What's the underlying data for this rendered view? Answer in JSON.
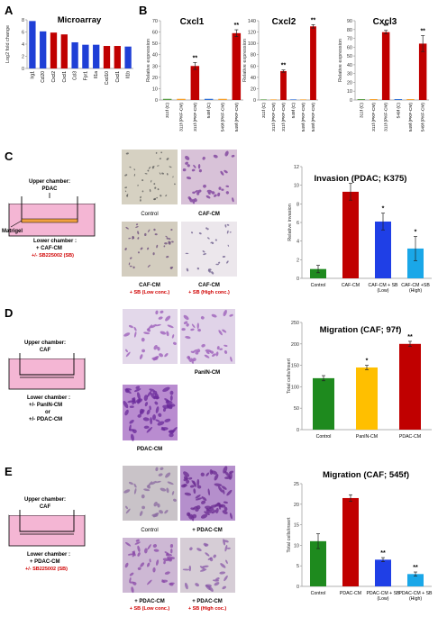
{
  "panels": {
    "a": "A",
    "b": "B",
    "c": "C",
    "d": "D",
    "e": "E"
  },
  "chart_data": [
    {
      "id": "microarray",
      "type": "bar",
      "title": "Microarray",
      "ylabel": "Log2 fold change",
      "ylim": [
        0,
        8
      ],
      "yticks": [
        0,
        2,
        4,
        6,
        8
      ],
      "categories": [
        "Irg1",
        "Ccl20",
        "Cxcl2",
        "Cxcl1",
        "Ccl3",
        "Fpr1",
        "Il1a",
        "Cxcl10",
        "Cxcl1",
        "Il1b"
      ],
      "values": [
        7.8,
        6.1,
        5.9,
        5.6,
        4.3,
        3.9,
        3.9,
        3.7,
        3.7,
        3.6
      ],
      "colors": [
        "#1f3fd6",
        "#1f3fd6",
        "#c00000",
        "#c00000",
        "#1f3fd6",
        "#1f3fd6",
        "#1f3fd6",
        "#c00000",
        "#c00000",
        "#1f3fd6"
      ]
    },
    {
      "id": "cxcl1",
      "type": "bar",
      "title": "Cxcl1",
      "ylabel": "Relative expression",
      "ylim": [
        0,
        70
      ],
      "yticks": [
        0,
        10,
        20,
        30,
        40,
        50,
        60,
        70
      ],
      "categories": [
        "311f (C)",
        "311f (PKF-CM)",
        "311f (PKF-CM)",
        "549f (C)",
        "549f (PKF-CM)",
        "549f (PKF-CM)"
      ],
      "values": [
        1,
        1,
        30,
        1,
        1,
        59
      ],
      "errors": [
        0,
        0,
        3,
        0,
        0,
        3
      ],
      "signif": [
        "",
        "",
        "**",
        "",
        "",
        "**"
      ],
      "colors": [
        "#5a9e47",
        "#f6a02b",
        "#c00000",
        "#2e6fd6",
        "#f6a02b",
        "#c00000"
      ]
    },
    {
      "id": "cxcl2",
      "type": "bar",
      "title": "Cxcl2",
      "ylabel": "Relative expression",
      "ylim": [
        0,
        140
      ],
      "yticks": [
        0,
        20,
        40,
        60,
        80,
        100,
        120,
        140
      ],
      "categories": [
        "311f (C)",
        "311f (PKF-CM)",
        "311f (PKF-CM)",
        "549f (C)",
        "549f (PKF-CM)",
        "549f (PKF-CM)"
      ],
      "values": [
        1,
        1,
        51,
        1,
        1,
        130
      ],
      "errors": [
        0,
        0,
        2,
        0,
        0,
        3
      ],
      "signif": [
        "",
        "",
        "**",
        "",
        "",
        "**"
      ],
      "colors": [
        "#5a9e47",
        "#f6a02b",
        "#c00000",
        "#2e6fd6",
        "#f6a02b",
        "#c00000"
      ]
    },
    {
      "id": "cxcl3",
      "type": "bar",
      "title": "Cxcl3",
      "ylabel": "Relative expression",
      "ylim": [
        0,
        90
      ],
      "yticks": [
        0,
        10,
        20,
        30,
        40,
        50,
        60,
        70,
        80,
        90
      ],
      "categories": [
        "311f (C)",
        "311f (PKF-CM)",
        "311f (PKF-CM)",
        "549f (C)",
        "549f (PKF-CM)",
        "549f (PKF-CM)"
      ],
      "values": [
        1,
        1,
        77,
        1,
        1,
        64
      ],
      "errors": [
        0,
        0,
        2,
        0,
        0,
        9
      ],
      "signif": [
        "",
        "",
        "**",
        "",
        "",
        "**"
      ],
      "colors": [
        "#5a9e47",
        "#f6a02b",
        "#c00000",
        "#2e6fd6",
        "#f6a02b",
        "#c00000"
      ]
    },
    {
      "id": "invasion",
      "type": "bar",
      "title": "Invasion (PDAC; K375)",
      "ylabel": "Relative invasion",
      "ylim": [
        0,
        12
      ],
      "yticks": [
        0,
        2,
        4,
        6,
        8,
        10,
        12
      ],
      "categories": [
        "Control",
        "CAF-CM",
        "CAF-CM + SB (Low)",
        "CAF-CM +SB (High)"
      ],
      "values": [
        1,
        9.3,
        6.1,
        3.2
      ],
      "errors": [
        0.4,
        0.9,
        0.9,
        1.3
      ],
      "signif": [
        "",
        "",
        "*",
        "*"
      ],
      "colors": [
        "#1e8a1e",
        "#c00000",
        "#1f3fe6",
        "#1aa7e8"
      ]
    },
    {
      "id": "migration97",
      "type": "bar",
      "title": "Migration (CAF; 97f)",
      "ylabel": "Total cells/insert",
      "ylim": [
        0,
        250
      ],
      "yticks": [
        0,
        50,
        100,
        150,
        200,
        250
      ],
      "categories": [
        "Control",
        "PanIN-CM",
        "PDAC-CM"
      ],
      "values": [
        120,
        145,
        200
      ],
      "errors": [
        6,
        5,
        6
      ],
      "signif": [
        "",
        "*",
        "**"
      ],
      "colors": [
        "#1e8a1e",
        "#ffbf00",
        "#c00000"
      ]
    },
    {
      "id": "migration545",
      "type": "bar",
      "title": "Migration (CAF; 545f)",
      "ylabel": "Total cells/insert",
      "ylim": [
        0,
        25
      ],
      "yticks": [
        0,
        5,
        10,
        15,
        20,
        25
      ],
      "categories": [
        "Control",
        "PDAC-CM",
        "PDAC-CM + SB (Low)",
        "PDAC-CM + SB (High)"
      ],
      "values": [
        11,
        21.5,
        6.5,
        3
      ],
      "errors": [
        1.8,
        0.8,
        0.5,
        0.5
      ],
      "signif": [
        "",
        "",
        "**",
        "**"
      ],
      "colors": [
        "#1e8a1e",
        "#c00000",
        "#1f3fe6",
        "#1aa7e8"
      ]
    }
  ],
  "diagrams": {
    "c": {
      "upper_line1": "Upper chamber:",
      "upper_line2": "PDAC",
      "matrigel": "Matrigel",
      "lower_line1": "Lower chamber :",
      "lower_line2": "+ CAF-CM",
      "lower_line3": "+/- SB225002 (SB)"
    },
    "d": {
      "upper_line1": "Upper chamber:",
      "upper_line2": "CAF",
      "lower_line1": "Lower chamber :",
      "lower_line2": "+/- PanIN-CM",
      "lower_line3": "or",
      "lower_line4": "+/- PDAC-CM"
    },
    "e": {
      "upper_line1": "Upper chamber:",
      "upper_line2": "CAF",
      "lower_line1": "Lower chamber :",
      "lower_line2": "+ PDAC-CM",
      "lower_line3": "+/- SB225002 (SB)"
    }
  },
  "micrographs": {
    "c": [
      {
        "label": "Control"
      },
      {
        "label": "CAF-CM"
      },
      {
        "label": "CAF-CM",
        "label2": "+ SB (Low conc.)"
      },
      {
        "label": "CAF-CM",
        "label2": "+ SB (High conc.)"
      }
    ],
    "d": [
      {
        "label": ""
      },
      {
        "label": "PanIN-CM"
      },
      {
        "label": "PDAC-CM"
      }
    ],
    "e": [
      {
        "label": "Control"
      },
      {
        "label": "+ PDAC-CM"
      },
      {
        "label": "+ PDAC-CM",
        "label2": "+ SB (Low conc.)"
      },
      {
        "label": "+ PDAC-CM",
        "label2": "+ SB (High coc.)"
      }
    ]
  }
}
